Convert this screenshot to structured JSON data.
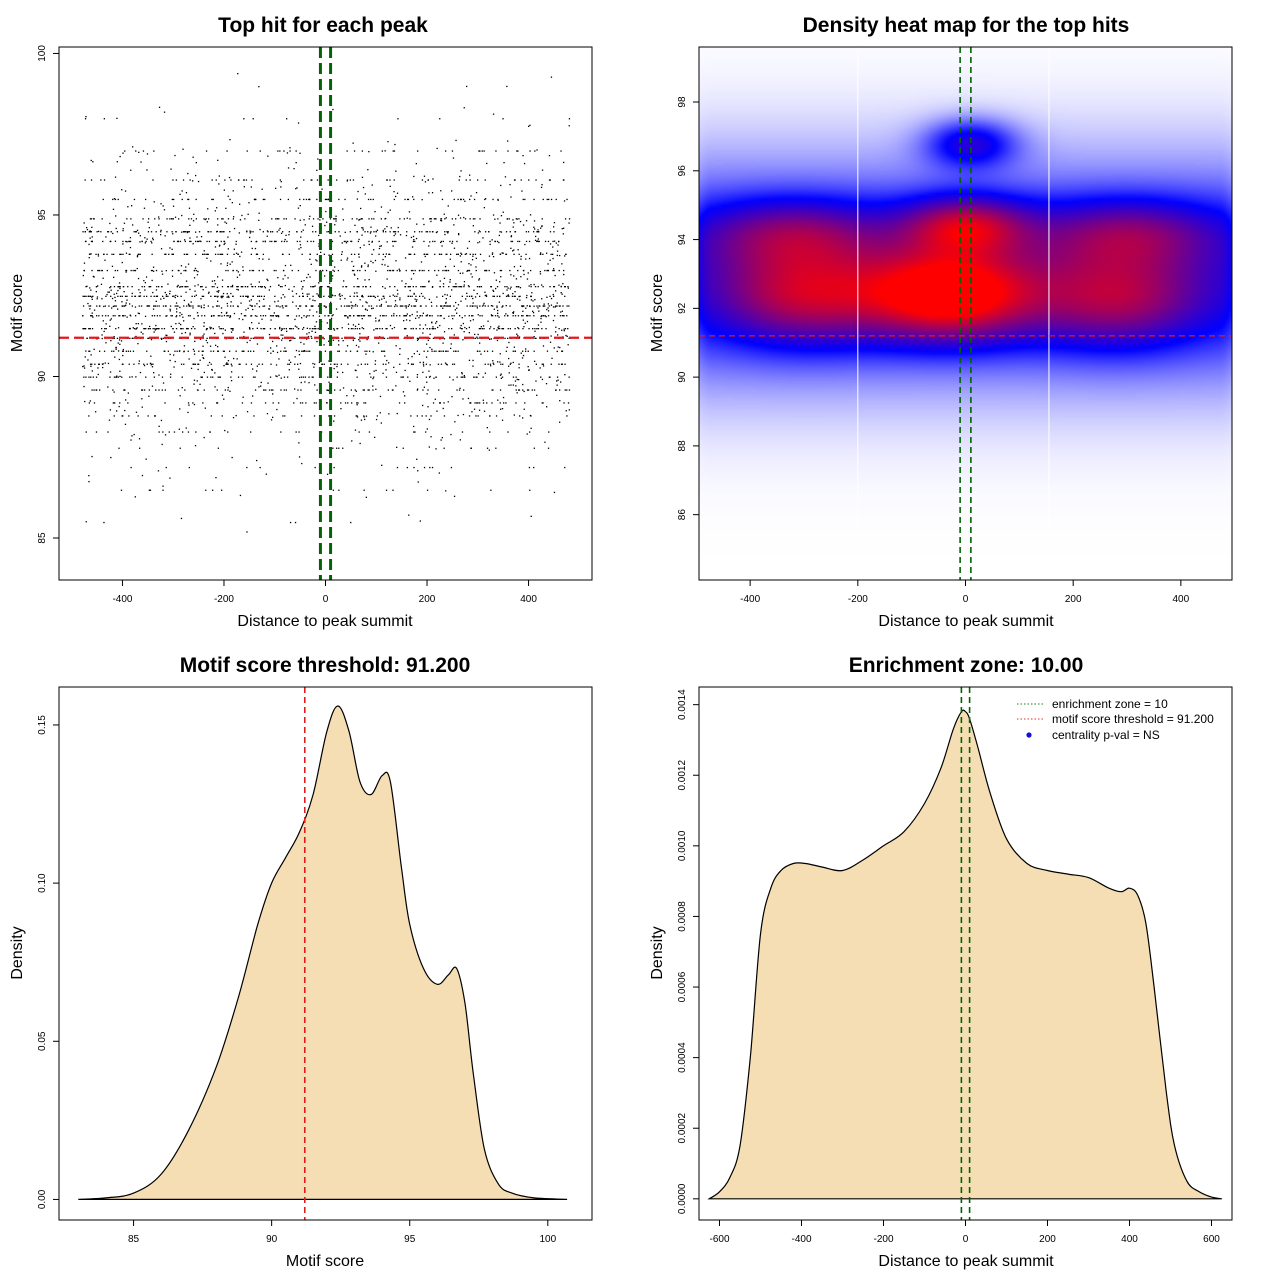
{
  "chart_data": [
    {
      "id": "scatter",
      "type": "scatter",
      "title": "Top hit for each peak",
      "xlabel": "Distance to peak summit",
      "ylabel": "Motif score",
      "xlim": [
        -525,
        525
      ],
      "ylim": [
        83.7,
        100.2
      ],
      "xticks": [
        -400,
        -200,
        0,
        200,
        400
      ],
      "yticks": [
        85,
        90,
        95,
        100
      ],
      "x_range_of_points": [
        -480,
        480
      ],
      "score_level_weights": [
        {
          "score": 97.0,
          "weight": 4
        },
        {
          "score": 96.1,
          "weight": 5
        },
        {
          "score": 95.5,
          "weight": 6
        },
        {
          "score": 94.9,
          "weight": 7
        },
        {
          "score": 94.5,
          "weight": 9
        },
        {
          "score": 94.2,
          "weight": 9
        },
        {
          "score": 93.8,
          "weight": 10
        },
        {
          "score": 93.3,
          "weight": 11
        },
        {
          "score": 92.8,
          "weight": 12
        },
        {
          "score": 92.5,
          "weight": 13
        },
        {
          "score": 92.2,
          "weight": 13
        },
        {
          "score": 91.9,
          "weight": 12
        },
        {
          "score": 91.5,
          "weight": 11
        },
        {
          "score": 91.2,
          "weight": 10
        },
        {
          "score": 90.8,
          "weight": 9
        },
        {
          "score": 90.4,
          "weight": 8
        },
        {
          "score": 90.0,
          "weight": 7
        },
        {
          "score": 89.6,
          "weight": 6
        },
        {
          "score": 89.2,
          "weight": 5
        },
        {
          "score": 88.8,
          "weight": 4
        },
        {
          "score": 88.3,
          "weight": 3
        },
        {
          "score": 87.8,
          "weight": 2
        },
        {
          "score": 87.2,
          "weight": 1.5
        },
        {
          "score": 86.5,
          "weight": 1
        },
        {
          "score": 85.5,
          "weight": 0.5
        },
        {
          "score": 98.0,
          "weight": 0.8
        },
        {
          "score": 99.0,
          "weight": 0.3
        }
      ],
      "threshold_score": 91.2,
      "zone_bounds": [
        -10,
        10
      ]
    },
    {
      "id": "heatmap",
      "type": "heatmap",
      "title": "Density heat map for the top hits",
      "xlabel": "Distance to peak summit",
      "ylabel": "Motif score",
      "xlim": [
        -495,
        495
      ],
      "ylim": [
        84.1,
        99.6
      ],
      "xticks": [
        -400,
        -200,
        0,
        200,
        400
      ],
      "yticks": [
        86,
        88,
        90,
        92,
        94,
        96,
        98
      ],
      "blobs": [
        {
          "x": -30,
          "y": 92.4,
          "sx": 110,
          "sy": 0.9,
          "w": 1.0
        },
        {
          "x": 0,
          "y": 94.4,
          "sx": 80,
          "sy": 0.6,
          "w": 0.7
        },
        {
          "x": 10,
          "y": 96.8,
          "sx": 60,
          "sy": 0.5,
          "w": 0.5
        },
        {
          "x": -300,
          "y": 92.4,
          "sx": 110,
          "sy": 1.0,
          "w": 0.6
        },
        {
          "x": 280,
          "y": 92.3,
          "sx": 110,
          "sy": 1.0,
          "w": 0.55
        },
        {
          "x": -320,
          "y": 94.2,
          "sx": 120,
          "sy": 0.7,
          "w": 0.45
        },
        {
          "x": 300,
          "y": 94.2,
          "sx": 120,
          "sy": 0.7,
          "w": 0.45
        }
      ],
      "vertical_white_lines": [
        -200,
        155
      ],
      "threshold_score": 91.2,
      "zone_bounds": [
        -10,
        10
      ]
    },
    {
      "id": "score-density",
      "type": "area",
      "title": "Motif score threshold: 91.200",
      "xlabel": "Motif score",
      "ylabel": "Density",
      "xlim": [
        82.3,
        101.6
      ],
      "ylim": [
        -0.0065,
        0.162
      ],
      "xticks": [
        85,
        90,
        95,
        100
      ],
      "yticks": [
        0.0,
        0.05,
        0.1,
        0.15
      ],
      "ytick_labels": [
        "0.00",
        "0.05",
        "0.10",
        "0.15"
      ],
      "x": [
        83.0,
        84.0,
        85.0,
        86.0,
        87.0,
        88.0,
        88.8,
        89.5,
        90.0,
        90.5,
        91.0,
        91.5,
        92.0,
        92.4,
        92.8,
        93.2,
        93.6,
        94.0,
        94.3,
        94.7,
        95.0,
        95.5,
        96.0,
        96.4,
        96.7,
        97.0,
        97.3,
        97.7,
        98.2,
        98.7,
        99.5,
        100.7
      ],
      "y": [
        0.0,
        0.0005,
        0.002,
        0.008,
        0.022,
        0.042,
        0.064,
        0.087,
        0.1,
        0.108,
        0.116,
        0.128,
        0.148,
        0.156,
        0.148,
        0.132,
        0.128,
        0.134,
        0.132,
        0.105,
        0.087,
        0.073,
        0.068,
        0.071,
        0.073,
        0.062,
        0.04,
        0.016,
        0.005,
        0.002,
        0.0005,
        0.0
      ],
      "threshold_score": 91.2
    },
    {
      "id": "distance-density",
      "type": "area",
      "title": "Enrichment zone: 10.00",
      "xlabel": "Distance to peak summit",
      "ylabel": "Density",
      "xlim": [
        -650,
        650
      ],
      "ylim": [
        -6e-05,
        0.00145
      ],
      "xticks": [
        -600,
        -400,
        -200,
        0,
        200,
        400,
        600
      ],
      "yticks": [
        0.0,
        0.0002,
        0.0004,
        0.0006,
        0.0008,
        0.001,
        0.0012,
        0.0014
      ],
      "ytick_labels": [
        "0.0000",
        "0.0002",
        "0.0004",
        "0.0006",
        "0.0008",
        "0.0010",
        "0.0012",
        "0.0014"
      ],
      "x": [
        -625,
        -600,
        -575,
        -550,
        -525,
        -500,
        -475,
        -450,
        -420,
        -390,
        -350,
        -300,
        -250,
        -200,
        -150,
        -100,
        -60,
        -30,
        -10,
        0,
        10,
        30,
        60,
        100,
        150,
        200,
        250,
        300,
        350,
        380,
        400,
        420,
        440,
        460,
        490,
        510,
        540,
        570,
        600,
        625
      ],
      "y": [
        0.0,
        2e-05,
        6e-05,
        0.00015,
        0.0004,
        0.00075,
        0.00088,
        0.00093,
        0.00095,
        0.00095,
        0.00094,
        0.00093,
        0.00096,
        0.001,
        0.00104,
        0.00112,
        0.00122,
        0.00133,
        0.00138,
        0.00138,
        0.00136,
        0.00128,
        0.00115,
        0.00102,
        0.00095,
        0.00093,
        0.00092,
        0.00091,
        0.00088,
        0.00087,
        0.00088,
        0.00086,
        0.00078,
        0.0006,
        0.0003,
        0.00015,
        5e-05,
        2e-05,
        5e-06,
        0.0
      ],
      "zone_bounds": [
        -10,
        10
      ],
      "legend": {
        "position": "top-right",
        "entries": [
          {
            "label": "enrichment zone = 10",
            "color": "#1f7a1f",
            "style": "dotted-line"
          },
          {
            "label": "motif score threshold = 91.200",
            "color": "#e03030",
            "style": "dotted-line"
          },
          {
            "label": "centrality p-val = NS",
            "color": "#1010e0",
            "style": "point"
          }
        ]
      }
    }
  ],
  "colors": {
    "points": "#000000",
    "threshold": "#e31a1c",
    "zone": "#006400",
    "fill": "#f5deb3",
    "heat_low": "#0000ff",
    "heat_high": "#ff0000"
  }
}
